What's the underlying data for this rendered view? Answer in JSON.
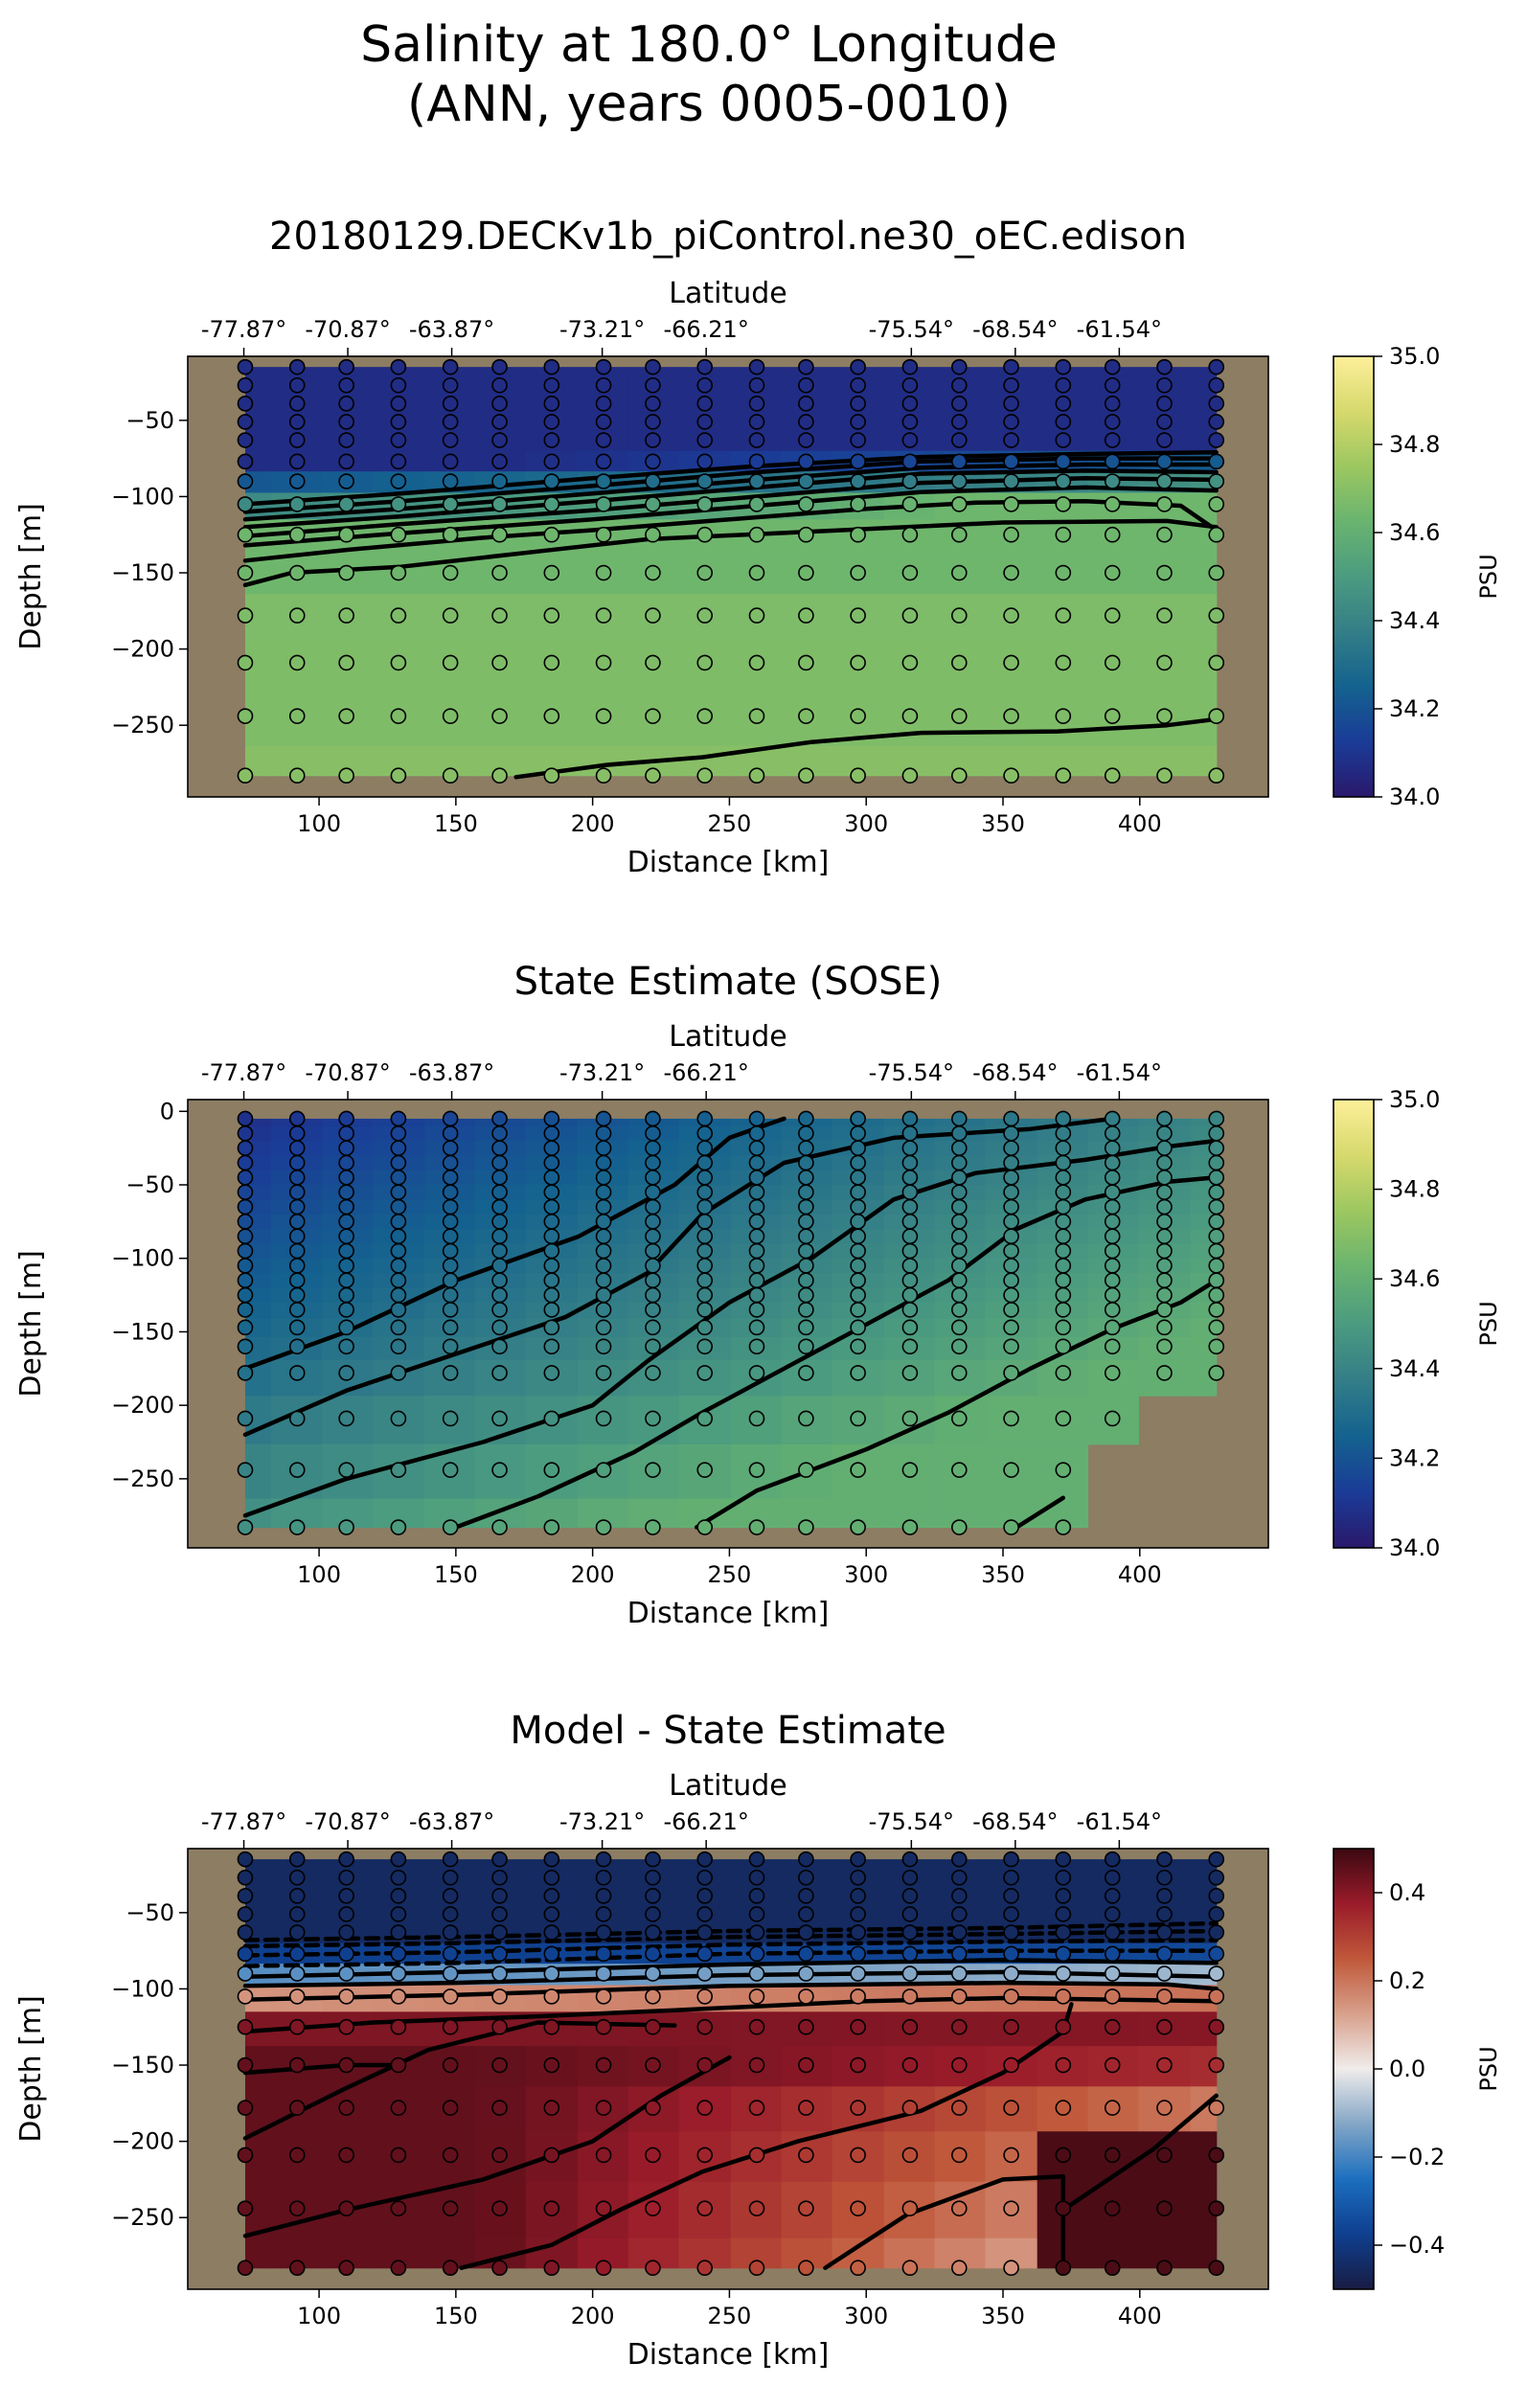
{
  "suptitle": {
    "line1": "Salinity at 180.0° Longitude",
    "line2": "(ANN, years 0005-0010)"
  },
  "colors": {
    "land": "#8c7d63",
    "haline_stops": [
      "#2a186c",
      "#1a3c97",
      "#14628f",
      "#337e87",
      "#4b9b80",
      "#69b46f",
      "#9cc760",
      "#d6d96c",
      "#fdef9a"
    ],
    "balance_stops": [
      "#181c43",
      "#0f3f8f",
      "#1c6fbf",
      "#83a6c6",
      "#f0eceb",
      "#d8a08b",
      "#c0583a",
      "#9a1b2a",
      "#3c0912"
    ]
  },
  "chart_data": [
    {
      "type": "heatmap",
      "title": "20180129.DECKv1b_piControl.ne30_oEC.edison",
      "xlabel": "Distance [km]",
      "ylabel": "Depth [m]",
      "top_axis_label": "Latitude",
      "xlim": [
        52,
        447
      ],
      "ylim": [
        -297,
        -8
      ],
      "xticks": [
        100,
        150,
        200,
        250,
        300,
        350,
        400
      ],
      "yticks": [
        -50,
        -100,
        -150,
        -200,
        -250
      ],
      "lat_ticks": [
        {
          "x": 72.5,
          "label": "-77.87°"
        },
        {
          "x": 110.5,
          "label": "-70.87°"
        },
        {
          "x": 148.5,
          "label": "-63.87°"
        },
        {
          "x": 203.5,
          "label": "-73.21°"
        },
        {
          "x": 241.5,
          "label": "-66.21°"
        },
        {
          "x": 316.5,
          "label": "-75.54°"
        },
        {
          "x": 354.5,
          "label": "-68.54°"
        },
        {
          "x": 392.5,
          "label": "-61.54°"
        }
      ],
      "colormap": "haline",
      "colorbar": {
        "min": 34.0,
        "max": 35.0,
        "ticks": [
          34.0,
          34.2,
          34.4,
          34.6,
          34.8,
          35.0
        ],
        "tick_labels": [
          "34.0",
          "34.2",
          "34.4",
          "34.6",
          "34.8",
          "35.0"
        ],
        "label": "PSU"
      },
      "stations_x": [
        73,
        92,
        110,
        129,
        148,
        166,
        185,
        204,
        222,
        241,
        260,
        278,
        297,
        316,
        334,
        353,
        372,
        390,
        409,
        428
      ],
      "depths": [
        -15,
        -27,
        -39,
        -51,
        -63,
        -77,
        -90,
        -105,
        -125,
        -150,
        -178,
        -209,
        -244,
        -283
      ],
      "field": {
        "kind": "model",
        "shelf_shallow": 34.07,
        "shelf_deep": 34.64,
        "base_depth_edges": [
          -80,
          -120
        ],
        "lower_depth": -150,
        "lower_value": 34.68,
        "deep_value": 34.7
      },
      "contours": [
        [
          [
            73,
            -105
          ],
          [
            130,
            -98
          ],
          [
            200,
            -88
          ],
          [
            260,
            -80
          ],
          [
            320,
            -74
          ],
          [
            380,
            -72
          ],
          [
            428,
            -71
          ]
        ],
        [
          [
            73,
            -110
          ],
          [
            130,
            -103
          ],
          [
            200,
            -93
          ],
          [
            260,
            -84
          ],
          [
            320,
            -77
          ],
          [
            380,
            -75
          ],
          [
            428,
            -75
          ]
        ],
        [
          [
            73,
            -115
          ],
          [
            130,
            -108
          ],
          [
            200,
            -98
          ],
          [
            260,
            -89
          ],
          [
            320,
            -81
          ],
          [
            380,
            -79
          ],
          [
            428,
            -79
          ]
        ],
        [
          [
            73,
            -120
          ],
          [
            130,
            -113
          ],
          [
            200,
            -103
          ],
          [
            260,
            -94
          ],
          [
            320,
            -85
          ],
          [
            380,
            -83
          ],
          [
            428,
            -84
          ]
        ],
        [
          [
            73,
            -126
          ],
          [
            130,
            -118
          ],
          [
            200,
            -109
          ],
          [
            260,
            -100
          ],
          [
            320,
            -91
          ],
          [
            380,
            -88
          ],
          [
            428,
            -89
          ]
        ],
        [
          [
            73,
            -132
          ],
          [
            130,
            -124
          ],
          [
            200,
            -115
          ],
          [
            260,
            -106
          ],
          [
            320,
            -97
          ],
          [
            380,
            -94
          ],
          [
            428,
            -96
          ]
        ],
        [
          [
            73,
            -142
          ],
          [
            110,
            -135
          ],
          [
            160,
            -127
          ],
          [
            200,
            -122
          ],
          [
            250,
            -115
          ],
          [
            300,
            -108
          ],
          [
            340,
            -104
          ],
          [
            380,
            -103
          ],
          [
            415,
            -106
          ],
          [
            428,
            -122
          ]
        ],
        [
          [
            73,
            -158
          ],
          [
            90,
            -150
          ],
          [
            130,
            -146
          ],
          [
            180,
            -136
          ],
          [
            220,
            -128
          ],
          [
            280,
            -123
          ],
          [
            350,
            -117
          ],
          [
            410,
            -116
          ],
          [
            428,
            -120
          ]
        ],
        [
          [
            172,
            -284
          ],
          [
            205,
            -276
          ],
          [
            240,
            -271
          ],
          [
            280,
            -261
          ],
          [
            320,
            -255
          ],
          [
            370,
            -254
          ],
          [
            410,
            -250
          ],
          [
            428,
            -246
          ]
        ]
      ]
    },
    {
      "type": "heatmap",
      "title": "State Estimate (SOSE)",
      "xlabel": "Distance [km]",
      "ylabel": "Depth [m]",
      "top_axis_label": "Latitude",
      "xlim": [
        52,
        447
      ],
      "ylim": [
        -297,
        8
      ],
      "xticks": [
        100,
        150,
        200,
        250,
        300,
        350,
        400
      ],
      "yticks": [
        0,
        -50,
        -100,
        -150,
        -200,
        -250
      ],
      "lat_ticks": [
        {
          "x": 72.5,
          "label": "-77.87°"
        },
        {
          "x": 110.5,
          "label": "-70.87°"
        },
        {
          "x": 148.5,
          "label": "-63.87°"
        },
        {
          "x": 203.5,
          "label": "-73.21°"
        },
        {
          "x": 241.5,
          "label": "-66.21°"
        },
        {
          "x": 316.5,
          "label": "-75.54°"
        },
        {
          "x": 354.5,
          "label": "-68.54°"
        },
        {
          "x": 392.5,
          "label": "-61.54°"
        }
      ],
      "colormap": "haline",
      "colorbar": {
        "min": 34.0,
        "max": 35.0,
        "ticks": [
          34.0,
          34.2,
          34.4,
          34.6,
          34.8,
          35.0
        ],
        "tick_labels": [
          "34.0",
          "34.2",
          "34.4",
          "34.6",
          "34.8",
          "35.0"
        ],
        "label": "PSU"
      },
      "stations_x": [
        73,
        92,
        110,
        129,
        148,
        166,
        185,
        204,
        222,
        241,
        260,
        278,
        297,
        316,
        334,
        353,
        372,
        390,
        409,
        428
      ],
      "depths": [
        -5,
        -15,
        -25,
        -35,
        -45,
        -55,
        -65,
        -75,
        -85,
        -95,
        -105,
        -115,
        -125,
        -135,
        -147,
        -160,
        -178,
        -209,
        -244,
        -283
      ],
      "station_max_depth": [
        -283,
        -283,
        -283,
        -283,
        -283,
        -283,
        -283,
        -283,
        -283,
        -283,
        -283,
        -283,
        -283,
        -283,
        -283,
        -283,
        -283,
        -209,
        -178,
        -178
      ],
      "field": {
        "kind": "sose"
      },
      "contours": [
        [
          [
            73,
            -175
          ],
          [
            110,
            -150
          ],
          [
            150,
            -115
          ],
          [
            195,
            -85
          ],
          [
            230,
            -50
          ],
          [
            250,
            -18
          ],
          [
            270,
            -5
          ]
        ],
        [
          [
            73,
            -220
          ],
          [
            110,
            -190
          ],
          [
            150,
            -165
          ],
          [
            190,
            -140
          ],
          [
            220,
            -110
          ],
          [
            240,
            -70
          ],
          [
            270,
            -35
          ],
          [
            310,
            -18
          ],
          [
            360,
            -12
          ],
          [
            390,
            -5
          ]
        ],
        [
          [
            73,
            -275
          ],
          [
            110,
            -250
          ],
          [
            160,
            -225
          ],
          [
            200,
            -200
          ],
          [
            220,
            -170
          ],
          [
            250,
            -130
          ],
          [
            280,
            -100
          ],
          [
            310,
            -60
          ],
          [
            340,
            -42
          ],
          [
            380,
            -33
          ],
          [
            410,
            -24
          ],
          [
            428,
            -20
          ]
        ],
        [
          [
            150,
            -283
          ],
          [
            180,
            -262
          ],
          [
            215,
            -232
          ],
          [
            240,
            -205
          ],
          [
            270,
            -175
          ],
          [
            300,
            -145
          ],
          [
            330,
            -115
          ],
          [
            355,
            -80
          ],
          [
            380,
            -60
          ],
          [
            410,
            -48
          ],
          [
            428,
            -45
          ]
        ],
        [
          [
            238,
            -283
          ],
          [
            260,
            -258
          ],
          [
            300,
            -230
          ],
          [
            330,
            -205
          ],
          [
            360,
            -175
          ],
          [
            390,
            -148
          ],
          [
            415,
            -130
          ],
          [
            428,
            -115
          ]
        ],
        [
          [
            355,
            -283
          ],
          [
            372,
            -263
          ]
        ]
      ]
    },
    {
      "type": "heatmap",
      "title": "Model - State Estimate",
      "xlabel": "Distance [km]",
      "ylabel": "Depth [m]",
      "top_axis_label": "Latitude",
      "xlim": [
        52,
        447
      ],
      "ylim": [
        -297,
        -8
      ],
      "xticks": [
        100,
        150,
        200,
        250,
        300,
        350,
        400
      ],
      "yticks": [
        -50,
        -100,
        -150,
        -200,
        -250
      ],
      "lat_ticks": [
        {
          "x": 72.5,
          "label": "-77.87°"
        },
        {
          "x": 110.5,
          "label": "-70.87°"
        },
        {
          "x": 148.5,
          "label": "-63.87°"
        },
        {
          "x": 203.5,
          "label": "-73.21°"
        },
        {
          "x": 241.5,
          "label": "-66.21°"
        },
        {
          "x": 316.5,
          "label": "-75.54°"
        },
        {
          "x": 354.5,
          "label": "-68.54°"
        },
        {
          "x": 392.5,
          "label": "-61.54°"
        }
      ],
      "colormap": "balance",
      "colorbar": {
        "min": -0.5,
        "max": 0.5,
        "ticks": [
          -0.4,
          -0.2,
          0.0,
          0.2,
          0.4
        ],
        "tick_labels": [
          "−0.4",
          "−0.2",
          "0.0",
          "0.2",
          "0.4"
        ],
        "label": "PSU"
      },
      "stations_x": [
        73,
        92,
        110,
        129,
        148,
        166,
        185,
        204,
        222,
        241,
        260,
        278,
        297,
        316,
        334,
        353,
        372,
        390,
        409,
        428
      ],
      "depths": [
        -15,
        -27,
        -39,
        -51,
        -63,
        -77,
        -90,
        -105,
        -125,
        -150,
        -178,
        -209,
        -244,
        -283
      ],
      "field": {
        "kind": "difference",
        "patch": {
          "x0": 372,
          "x1": 428,
          "y0": -283,
          "y1": -180,
          "value": 0.48
        }
      },
      "contours": [
        [
          [
            73,
            -68
          ],
          [
            150,
            -66
          ],
          [
            250,
            -62
          ],
          [
            350,
            -60
          ],
          [
            428,
            -57
          ]
        ],
        [
          [
            73,
            -72
          ],
          [
            150,
            -70
          ],
          [
            250,
            -66
          ],
          [
            350,
            -64
          ],
          [
            428,
            -62
          ]
        ],
        [
          [
            73,
            -78
          ],
          [
            150,
            -76
          ],
          [
            250,
            -71
          ],
          [
            350,
            -69
          ],
          [
            428,
            -68
          ]
        ],
        [
          [
            73,
            -85
          ],
          [
            150,
            -83
          ],
          [
            250,
            -77
          ],
          [
            350,
            -75
          ],
          [
            428,
            -75
          ]
        ],
        [
          [
            73,
            -92
          ],
          [
            150,
            -89
          ],
          [
            250,
            -84
          ],
          [
            350,
            -81
          ],
          [
            428,
            -83
          ]
        ],
        [
          [
            73,
            -98
          ],
          [
            150,
            -96
          ],
          [
            250,
            -91
          ],
          [
            350,
            -89
          ],
          [
            428,
            -92
          ]
        ],
        [
          [
            73,
            -107
          ],
          [
            150,
            -104
          ],
          [
            250,
            -98
          ],
          [
            350,
            -96
          ],
          [
            410,
            -97
          ],
          [
            428,
            -100
          ]
        ],
        [
          [
            73,
            -128
          ],
          [
            120,
            -122
          ],
          [
            180,
            -118
          ],
          [
            230,
            -114
          ],
          [
            300,
            -108
          ],
          [
            350,
            -106
          ],
          [
            428,
            -108
          ]
        ],
        [
          [
            73,
            -155
          ],
          [
            110,
            -150
          ],
          [
            130,
            -150
          ]
        ],
        [
          [
            73,
            -198
          ],
          [
            110,
            -165
          ],
          [
            140,
            -140
          ],
          [
            180,
            -122
          ],
          [
            230,
            -124
          ]
        ],
        [
          [
            73,
            -262
          ],
          [
            110,
            -245
          ],
          [
            160,
            -225
          ],
          [
            200,
            -200
          ],
          [
            225,
            -170
          ],
          [
            250,
            -145
          ]
        ],
        [
          [
            152,
            -283
          ],
          [
            185,
            -268
          ],
          [
            210,
            -245
          ],
          [
            240,
            -220
          ],
          [
            275,
            -200
          ],
          [
            320,
            -180
          ],
          [
            350,
            -155
          ],
          [
            372,
            -128
          ],
          [
            375,
            -110
          ]
        ],
        [
          [
            285,
            -283
          ],
          [
            315,
            -248
          ],
          [
            350,
            -225
          ],
          [
            372,
            -223
          ],
          [
            372,
            -283
          ]
        ],
        [
          [
            372,
            -245
          ],
          [
            405,
            -205
          ],
          [
            428,
            -170
          ]
        ]
      ]
    }
  ]
}
